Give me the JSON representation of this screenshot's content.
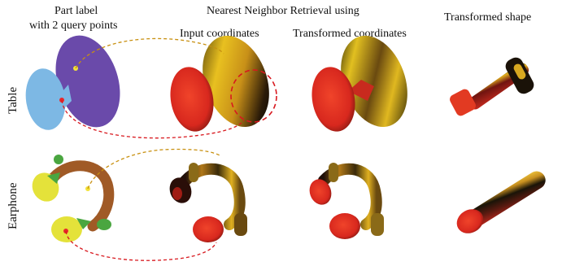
{
  "headers": {
    "part_label_line1": "Part label",
    "part_label_line2": "with 2 query points",
    "nn_title": "Nearest Neighbor Retrieval using",
    "input_coords": "Input coordinates",
    "transformed_coords": "Transformed coordinates",
    "transformed_shape": "Transformed shape"
  },
  "rows": {
    "table": "Table",
    "earphone": "Earphone"
  },
  "colors": {
    "table_top": "#6a4aaa",
    "table_leg": "#7db8e4",
    "earphone_band": "#a05a26",
    "earphone_cup": "#e4e23a",
    "earphone_green": "#4aa640",
    "red_query": "#e8282a",
    "yellow_query": "#f2e23a",
    "red_link": "#d8181e",
    "gold_link": "#c89010"
  }
}
